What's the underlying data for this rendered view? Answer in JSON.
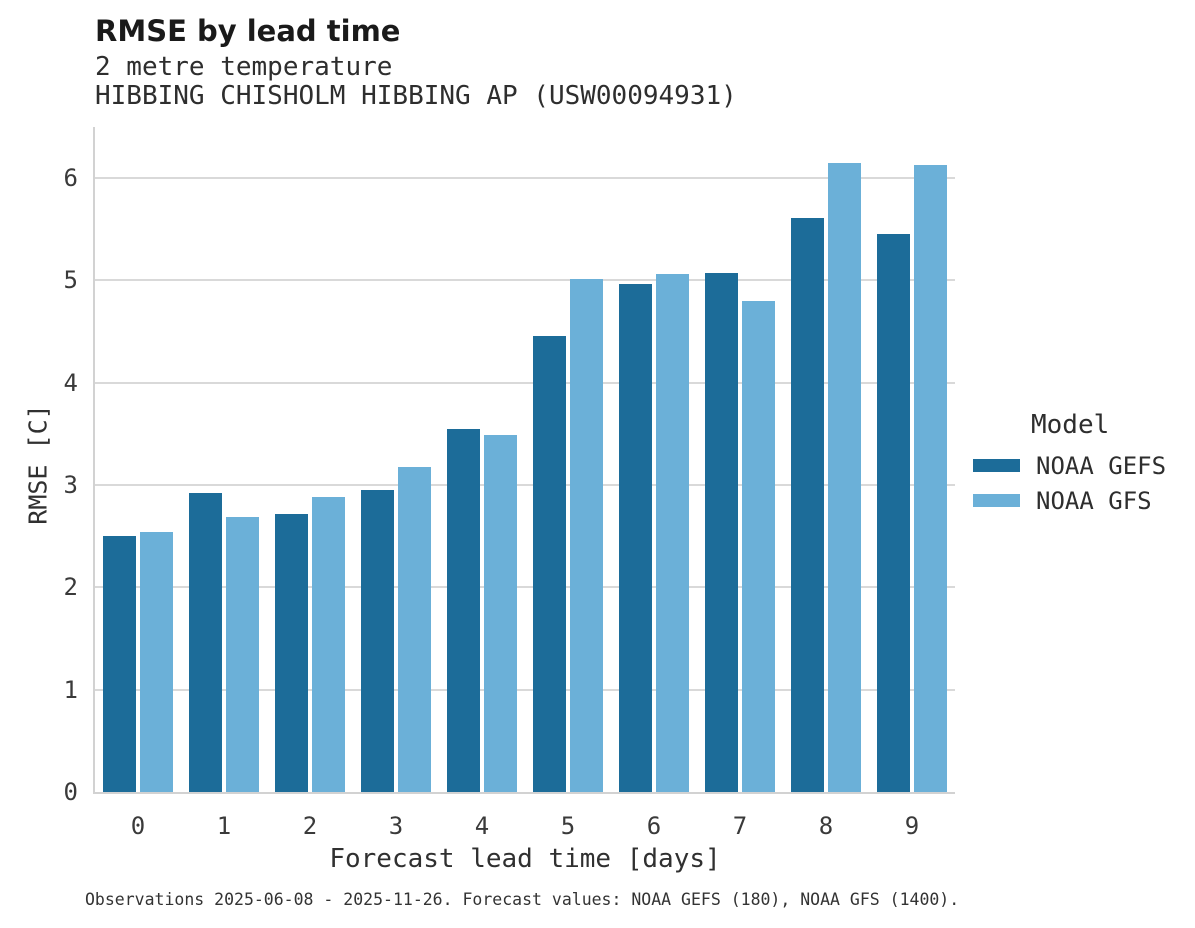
{
  "title": "RMSE by lead time",
  "subtitle1": "2 metre temperature",
  "subtitle2": "HIBBING CHISHOLM HIBBING AP (USW00094931)",
  "footer": "Observations 2025-06-08 - 2025-11-26. Forecast values: NOAA GEFS (180), NOAA GFS (1400).",
  "legend": {
    "title": "Model",
    "entries": [
      {
        "label": "NOAA GEFS",
        "color": "#1c6c99"
      },
      {
        "label": "NOAA GFS",
        "color": "#6bb0d8"
      }
    ]
  },
  "colors": {
    "gefs": "#1c6c99",
    "gfs": "#6bb0d8",
    "gridline": "#d9d9d9",
    "spine": "#d2d2d2"
  },
  "chart_data": {
    "type": "bar",
    "title": "RMSE by lead time",
    "subtitle": [
      "2 metre temperature",
      "HIBBING CHISHOLM HIBBING AP (USW00094931)"
    ],
    "categories": [
      "0",
      "1",
      "2",
      "3",
      "4",
      "5",
      "6",
      "7",
      "8",
      "9"
    ],
    "series": [
      {
        "name": "NOAA GEFS",
        "color": "#1c6c99",
        "values": [
          2.5,
          2.92,
          2.72,
          2.95,
          3.55,
          4.46,
          4.97,
          5.07,
          5.61,
          5.45
        ]
      },
      {
        "name": "NOAA GFS",
        "color": "#6bb0d8",
        "values": [
          2.54,
          2.69,
          2.88,
          3.18,
          3.49,
          5.01,
          5.06,
          4.8,
          6.15,
          6.13
        ]
      }
    ],
    "xlabel": "Forecast lead time [days]",
    "ylabel": "RMSE [C]",
    "ylim": [
      0,
      6.5
    ],
    "yticks": [
      0,
      1,
      2,
      3,
      4,
      5,
      6
    ],
    "grid": true,
    "legend_title": "Model",
    "legend_position": "right",
    "caption": "Observations 2025-06-08 - 2025-11-26. Forecast values: NOAA GEFS (180), NOAA GFS (1400)."
  }
}
